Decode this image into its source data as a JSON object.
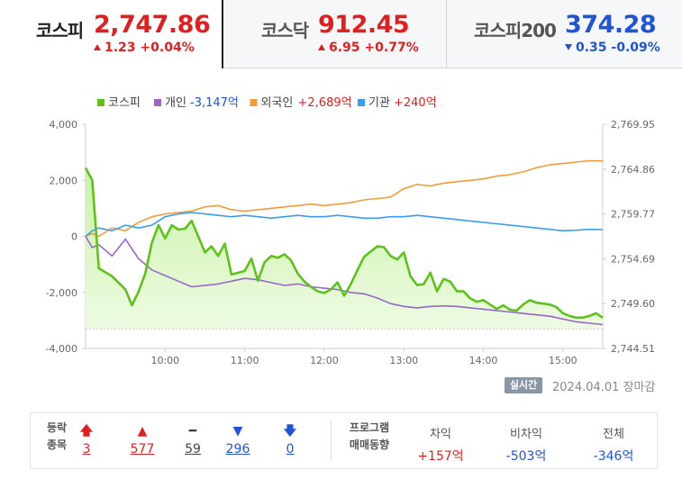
{
  "tabs": [
    {
      "name": "코스피",
      "value": "2,747.86",
      "change": "1.23 +0.04%",
      "direction": "up"
    },
    {
      "name": "코스닥",
      "value": "912.45",
      "change": "6.95 +0.77%",
      "direction": "up"
    },
    {
      "name": "코스피200",
      "value": "374.28",
      "change": "0.35 -0.09%",
      "direction": "down"
    }
  ],
  "colors": {
    "kospi": "#5ec21b",
    "individual": "#9966cc",
    "foreign": "#f39a3a",
    "institution": "#3a9ef0",
    "up": "#e02020",
    "down": "#1f55d4"
  },
  "chart_data": {
    "type": "line",
    "x_ticks": [
      "10:00",
      "11:00",
      "12:00",
      "13:00",
      "14:00",
      "15:00"
    ],
    "left_axis_ticks": [
      "4,000",
      "2,000",
      "0",
      "-2,000",
      "-4,000"
    ],
    "right_axis_ticks": [
      "2,769.95",
      "2,764.86",
      "2,759.77",
      "2,754.69",
      "2,749.60",
      "2,744.51"
    ],
    "left_ylim": [
      -4000,
      4000
    ],
    "right_ylim": [
      2744.51,
      2769.95
    ],
    "legend": [
      {
        "key": "kospi",
        "label": "코스피",
        "amount": ""
      },
      {
        "key": "individual",
        "label": "개인",
        "amount": "-3,147억"
      },
      {
        "key": "foreign",
        "label": "외국인",
        "amount": "+2,689억"
      },
      {
        "key": "institution",
        "label": "기관",
        "amount": "+240억"
      }
    ],
    "x_range": [
      "09:00",
      "15:30"
    ],
    "series": [
      {
        "key": "kospi",
        "name": "코스피",
        "axis": "right",
        "x": [
          "09:00",
          "09:05",
          "09:10",
          "09:20",
          "09:30",
          "09:35",
          "09:40",
          "09:45",
          "09:50",
          "09:55",
          "10:00",
          "10:05",
          "10:10",
          "10:15",
          "10:20",
          "10:25",
          "10:30",
          "10:35",
          "10:40",
          "10:45",
          "10:50",
          "10:55",
          "11:00",
          "11:05",
          "11:10",
          "11:15",
          "11:20",
          "11:25",
          "11:30",
          "11:35",
          "11:40",
          "11:45",
          "11:50",
          "11:55",
          "12:00",
          "12:05",
          "12:10",
          "12:15",
          "12:20",
          "12:25",
          "12:30",
          "12:35",
          "12:40",
          "12:45",
          "12:50",
          "12:55",
          "13:00",
          "13:05",
          "13:10",
          "13:15",
          "13:20",
          "13:25",
          "13:30",
          "13:35",
          "13:40",
          "13:45",
          "13:50",
          "13:55",
          "14:00",
          "14:05",
          "14:10",
          "14:15",
          "14:20",
          "14:25",
          "14:30",
          "14:35",
          "14:40",
          "14:45",
          "14:50",
          "14:55",
          "15:00",
          "15:05",
          "15:10",
          "15:15",
          "15:20",
          "15:25",
          "15:30"
        ],
        "values": [
          2765.0,
          2763.6,
          2753.6,
          2752.7,
          2751.2,
          2749.4,
          2751.0,
          2753.0,
          2756.5,
          2758.5,
          2757.0,
          2758.5,
          2758.0,
          2758.1,
          2759.0,
          2757.2,
          2755.4,
          2756.1,
          2755.0,
          2756.4,
          2752.9,
          2753.1,
          2753.3,
          2754.7,
          2752.2,
          2754.3,
          2755.0,
          2754.8,
          2755.2,
          2754.5,
          2753.0,
          2752.1,
          2751.5,
          2751.0,
          2750.8,
          2751.2,
          2752.0,
          2750.5,
          2751.8,
          2753.4,
          2754.9,
          2755.5,
          2756.1,
          2756.0,
          2755.0,
          2754.6,
          2755.4,
          2752.7,
          2751.7,
          2751.8,
          2753.1,
          2751.0,
          2752.4,
          2752.1,
          2751.0,
          2751.0,
          2750.2,
          2749.8,
          2750.0,
          2749.5,
          2749.0,
          2749.4,
          2748.9,
          2748.8,
          2749.5,
          2750.0,
          2749.7,
          2749.6,
          2749.5,
          2749.2,
          2748.5,
          2748.2,
          2748.0,
          2748.0,
          2748.2,
          2748.5,
          2748.0
        ]
      },
      {
        "key": "individual",
        "name": "개인",
        "axis": "left",
        "x": [
          "09:00",
          "09:05",
          "09:10",
          "09:20",
          "09:30",
          "09:40",
          "09:50",
          "10:00",
          "10:10",
          "10:20",
          "10:30",
          "10:40",
          "10:50",
          "11:00",
          "11:10",
          "11:20",
          "11:30",
          "11:40",
          "11:50",
          "12:00",
          "12:10",
          "12:20",
          "12:30",
          "12:40",
          "12:50",
          "13:00",
          "13:10",
          "13:20",
          "13:30",
          "13:40",
          "13:50",
          "14:00",
          "14:10",
          "14:20",
          "14:30",
          "14:40",
          "14:50",
          "15:00",
          "15:10",
          "15:20",
          "15:30"
        ],
        "values": [
          0,
          -400,
          -300,
          -700,
          -100,
          -800,
          -1200,
          -1400,
          -1600,
          -1800,
          -1750,
          -1700,
          -1600,
          -1500,
          -1550,
          -1650,
          -1750,
          -1700,
          -1800,
          -1850,
          -1900,
          -2000,
          -2050,
          -2200,
          -2400,
          -2500,
          -2550,
          -2500,
          -2480,
          -2500,
          -2550,
          -2600,
          -2650,
          -2700,
          -2750,
          -2800,
          -2850,
          -2950,
          -3050,
          -3100,
          -3147
        ]
      },
      {
        "key": "foreign",
        "name": "외국인",
        "axis": "left",
        "x": [
          "09:00",
          "09:05",
          "09:10",
          "09:20",
          "09:30",
          "09:40",
          "09:50",
          "10:00",
          "10:10",
          "10:20",
          "10:30",
          "10:40",
          "10:50",
          "11:00",
          "11:10",
          "11:20",
          "11:30",
          "11:40",
          "11:50",
          "12:00",
          "12:10",
          "12:20",
          "12:30",
          "12:40",
          "12:50",
          "13:00",
          "13:10",
          "13:20",
          "13:30",
          "13:40",
          "13:50",
          "14:00",
          "14:10",
          "14:20",
          "14:30",
          "14:40",
          "14:50",
          "15:00",
          "15:10",
          "15:20",
          "15:30"
        ],
        "values": [
          0,
          100,
          0,
          300,
          200,
          500,
          700,
          800,
          850,
          900,
          1050,
          1100,
          950,
          900,
          950,
          1000,
          1050,
          1100,
          1150,
          1100,
          1150,
          1200,
          1300,
          1350,
          1400,
          1700,
          1850,
          1800,
          1900,
          1950,
          2000,
          2050,
          2150,
          2200,
          2300,
          2450,
          2550,
          2600,
          2650,
          2700,
          2689
        ]
      },
      {
        "key": "institution",
        "name": "기관",
        "axis": "left",
        "x": [
          "09:00",
          "09:05",
          "09:10",
          "09:20",
          "09:30",
          "09:40",
          "09:50",
          "10:00",
          "10:10",
          "10:20",
          "10:30",
          "10:40",
          "10:50",
          "11:00",
          "11:10",
          "11:20",
          "11:30",
          "11:40",
          "11:50",
          "12:00",
          "12:10",
          "12:20",
          "12:30",
          "12:40",
          "12:50",
          "13:00",
          "13:10",
          "13:20",
          "13:30",
          "13:40",
          "13:50",
          "14:00",
          "14:10",
          "14:20",
          "14:30",
          "14:40",
          "14:50",
          "15:00",
          "15:10",
          "15:20",
          "15:30"
        ],
        "values": [
          0,
          200,
          300,
          200,
          400,
          300,
          400,
          700,
          800,
          850,
          800,
          750,
          700,
          750,
          700,
          650,
          700,
          750,
          700,
          700,
          750,
          700,
          650,
          650,
          700,
          700,
          750,
          700,
          650,
          600,
          550,
          500,
          450,
          400,
          350,
          300,
          250,
          200,
          220,
          250,
          240
        ]
      }
    ]
  },
  "footer": {
    "realtime_label": "실시간",
    "date_status": "2024.04.01  장마감",
    "stats_header": [
      "등락",
      "종목"
    ],
    "stats": [
      {
        "icon": "upper-limit-arrow-icon",
        "glyph": "🡅",
        "value": "3",
        "color": "#e02020"
      },
      {
        "icon": "rise-triangle-icon",
        "glyph": "▲",
        "value": "577",
        "color": "#e02020"
      },
      {
        "icon": "flat-dash-icon",
        "glyph": "━",
        "value": "59",
        "color": "#444"
      },
      {
        "icon": "fall-triangle-icon",
        "glyph": "▼",
        "value": "296",
        "color": "#1f55d4"
      },
      {
        "icon": "lower-limit-arrow-icon",
        "glyph": "🡇",
        "value": "0",
        "color": "#1f55d4"
      }
    ],
    "program_header": [
      "프로그램",
      "매매동향"
    ],
    "program": [
      {
        "label": "차익",
        "value": "+157억",
        "color": "#e02020"
      },
      {
        "label": "비차익",
        "value": "-503억",
        "color": "#1f55d4"
      },
      {
        "label": "전체",
        "value": "-346억",
        "color": "#1f55d4"
      }
    ]
  }
}
